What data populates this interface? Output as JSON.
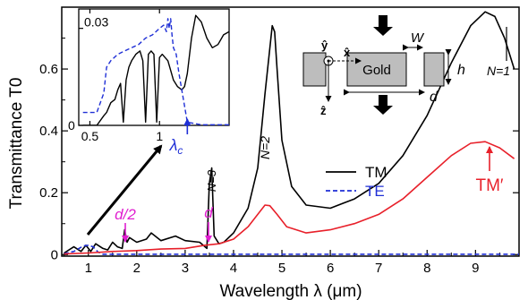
{
  "colors": {
    "tm": "#000000",
    "te": "#1f2fd6",
    "tm_prime": "#e8202a",
    "annotation": "#e01fd0",
    "lambda_c": "#1f2fd6",
    "gold": "#bdbdbd"
  },
  "chart_data": [
    {
      "type": "line",
      "xlabel": "Wavelength λ (μm)",
      "ylabel": "Transmittance T0",
      "xlim": [
        0.45,
        9.9
      ],
      "ylim": [
        -0.005,
        0.8
      ],
      "xticks": [
        1,
        2,
        3,
        4,
        5,
        6,
        7,
        8,
        9
      ],
      "yticks": [
        0,
        0.2,
        0.4,
        0.6
      ],
      "grid": false,
      "series": [
        {
          "name": "TM",
          "color": "#000000",
          "dash": "solid",
          "x": [
            0.5,
            0.7,
            0.85,
            0.95,
            1.05,
            1.15,
            1.3,
            1.4,
            1.5,
            1.6,
            1.7,
            1.75,
            1.8,
            1.85,
            2.0,
            2.2,
            2.3,
            2.5,
            2.8,
            3.0,
            3.3,
            3.45,
            3.5,
            3.55,
            3.6,
            3.7,
            3.8,
            4.0,
            4.3,
            4.5,
            4.65,
            4.8,
            4.85,
            4.9,
            5.0,
            5.2,
            5.5,
            6.0,
            6.5,
            7.0,
            7.5,
            8.0,
            8.5,
            8.9,
            9.2,
            9.4,
            9.6,
            9.8
          ],
          "y": [
            0.005,
            0.025,
            0.01,
            0.03,
            0.01,
            0.035,
            0.02,
            0.015,
            0.04,
            0.025,
            0.02,
            0.08,
            0.04,
            0.055,
            0.04,
            0.05,
            0.07,
            0.045,
            0.06,
            0.045,
            0.04,
            0.02,
            0.23,
            0.28,
            0.06,
            0.035,
            0.04,
            0.07,
            0.15,
            0.28,
            0.52,
            0.74,
            0.72,
            0.6,
            0.37,
            0.22,
            0.16,
            0.15,
            0.18,
            0.23,
            0.32,
            0.45,
            0.62,
            0.74,
            0.785,
            0.77,
            0.7,
            0.6
          ]
        },
        {
          "name": "TE",
          "color": "#1f2fd6",
          "dash": "dashed",
          "x": [
            0.5,
            0.7,
            0.9,
            1.0,
            1.1,
            1.2,
            1.3,
            2.0,
            4.0,
            6.0,
            8.0,
            9.9
          ],
          "y": [
            0.003,
            0.01,
            0.028,
            0.03,
            0.025,
            0.008,
            0.001,
            0.001,
            0.001,
            0.001,
            0.001,
            0.001
          ]
        },
        {
          "name": "TM′",
          "color": "#e8202a",
          "dash": "solid",
          "x": [
            0.5,
            1.0,
            1.5,
            2.0,
            2.5,
            3.0,
            3.4,
            3.7,
            4.0,
            4.3,
            4.5,
            4.65,
            4.75,
            4.9,
            5.1,
            5.5,
            6.0,
            6.5,
            7.0,
            7.5,
            8.0,
            8.5,
            8.9,
            9.2,
            9.5,
            9.8
          ],
          "y": [
            0.002,
            0.005,
            0.01,
            0.013,
            0.018,
            0.02,
            0.03,
            0.035,
            0.05,
            0.09,
            0.13,
            0.16,
            0.158,
            0.13,
            0.09,
            0.07,
            0.08,
            0.1,
            0.13,
            0.18,
            0.25,
            0.32,
            0.36,
            0.365,
            0.345,
            0.31
          ]
        }
      ],
      "legend": [
        {
          "label": "TM",
          "color": "#000000",
          "dash": "solid"
        },
        {
          "label": "TE",
          "color": "#1f2fd6",
          "dash": "dashed"
        }
      ],
      "annotations": {
        "mode_labels": [
          "N=1",
          "N=2",
          "N=3"
        ],
        "tm_prime": "TM′",
        "d_over_2": "d/2",
        "d": "d"
      }
    },
    {
      "type": "line",
      "xlim": [
        0.42,
        1.5
      ],
      "ylim": [
        0,
        0.036
      ],
      "xticks": [
        0.5,
        1
      ],
      "ytick_labels": [
        "0.03",
        "0"
      ],
      "grid": false,
      "series": [
        {
          "name": "TM",
          "color": "#000000",
          "dash": "solid",
          "x": [
            0.45,
            0.55,
            0.6,
            0.62,
            0.65,
            0.68,
            0.7,
            0.72,
            0.74,
            0.76,
            0.78,
            0.8,
            0.83,
            0.86,
            0.88,
            0.9,
            0.92,
            0.94,
            0.96,
            0.98,
            1.0,
            1.02,
            1.04,
            1.06,
            1.08,
            1.1,
            1.13,
            1.16,
            1.18,
            1.2,
            1.23,
            1.26,
            1.3,
            1.34,
            1.38,
            1.42,
            1.46,
            1.5
          ],
          "y": [
            0.0,
            0.0,
            0.003,
            0.004,
            0.007,
            0.008,
            0.011,
            0.013,
            0.001,
            0.014,
            0.018,
            0.02,
            0.022,
            0.023,
            0.02,
            0.001,
            0.022,
            0.023,
            0.022,
            0.001,
            0.021,
            0.022,
            0.021,
            0.02,
            0.017,
            0.014,
            0.012,
            0.011,
            0.012,
            0.016,
            0.027,
            0.034,
            0.032,
            0.027,
            0.024,
            0.025,
            0.028,
            0.029
          ]
        },
        {
          "name": "TE",
          "color": "#1f2fd6",
          "dash": "dashed",
          "x": [
            0.45,
            0.55,
            0.6,
            0.62,
            0.65,
            0.7,
            0.75,
            0.8,
            0.85,
            0.9,
            0.95,
            1.0,
            1.03,
            1.05,
            1.06,
            1.07,
            1.08,
            1.09,
            1.1,
            1.12,
            1.14,
            1.16,
            1.18,
            1.2,
            1.3,
            1.5
          ],
          "y": [
            0.004,
            0.004,
            0.01,
            0.018,
            0.02,
            0.022,
            0.023,
            0.024,
            0.025,
            0.027,
            0.028,
            0.03,
            0.031,
            0.029,
            0.033,
            0.03,
            0.033,
            0.028,
            0.024,
            0.022,
            0.016,
            0.011,
            0.006,
            0.001,
            0.0002,
            0.0002
          ]
        }
      ],
      "annotations": {
        "lambda_c": "λc",
        "lambda_c_x": 1.2
      }
    }
  ],
  "schematic": {
    "axis_y": "ŷ",
    "axis_x": "x̂",
    "axis_z": "ẑ",
    "material": "Gold",
    "width": "W",
    "height": "h",
    "period": "d"
  }
}
